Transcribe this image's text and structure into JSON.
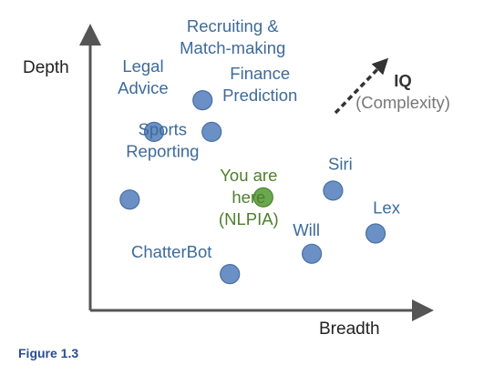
{
  "caption": "Figure 1.3",
  "chart_data": {
    "type": "scatter",
    "title": "",
    "xlabel": "Breadth",
    "ylabel": "Depth",
    "xlim": [
      0,
      100
    ],
    "ylim": [
      0,
      100
    ],
    "grid": false,
    "legend": "none",
    "annotation": {
      "label": "IQ",
      "sublabel": "(Complexity)",
      "direction": "up-right"
    },
    "colors": {
      "point": "#6a90c6",
      "point_stroke": "#4a6fa2",
      "highlight": "#6aa84f",
      "highlight_stroke": "#4e7f2e",
      "label": "#3d6b9a",
      "highlight_label": "#4e7f2e",
      "axis": "#555555"
    },
    "points": [
      {
        "label": [
          "Recruiting &",
          "Match-making"
        ],
        "x": 31,
        "y": 83,
        "highlight": false
      },
      {
        "label": [
          "Legal",
          "Advice"
        ],
        "x": 15,
        "y": 69,
        "highlight": false
      },
      {
        "label": [
          "Finance",
          "Prediction"
        ],
        "x": 34,
        "y": 69,
        "highlight": false
      },
      {
        "label": [
          "Sports",
          "Reporting"
        ],
        "x": 7,
        "y": 39,
        "highlight": false
      },
      {
        "label": [
          "You are",
          "here",
          "(NLPIA)"
        ],
        "x": 51,
        "y": 40,
        "highlight": true
      },
      {
        "label": [
          "Siri"
        ],
        "x": 74,
        "y": 43,
        "highlight": false
      },
      {
        "label": [
          "Lex"
        ],
        "x": 88,
        "y": 24,
        "highlight": false
      },
      {
        "label": [
          "Will"
        ],
        "x": 67,
        "y": 15,
        "highlight": false
      },
      {
        "label": [
          "ChatterBot"
        ],
        "x": 40,
        "y": 6,
        "highlight": false
      }
    ]
  }
}
